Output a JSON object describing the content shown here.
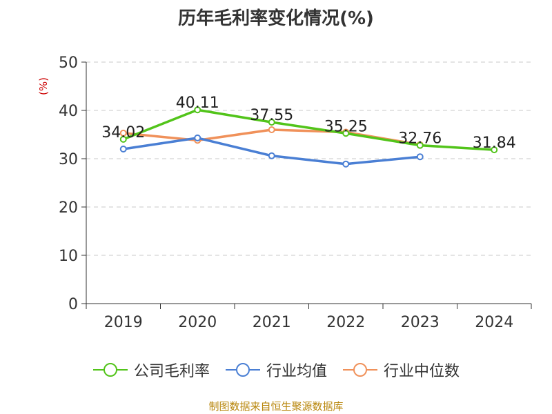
{
  "chart_data": {
    "type": "line",
    "title": "历年毛利率变化情况(%)",
    "ylabel": "(%)",
    "xlabel": "",
    "categories": [
      "2019",
      "2020",
      "2021",
      "2022",
      "2023",
      "2024"
    ],
    "ylim": [
      0,
      50
    ],
    "yticks": [
      0,
      10,
      20,
      30,
      40,
      50
    ],
    "grid": true,
    "legend_position": "bottom",
    "series": [
      {
        "name": "公司毛利率",
        "color": "#52c41a",
        "values": [
          34.02,
          40.11,
          37.55,
          35.25,
          32.76,
          31.84
        ],
        "labels": [
          "34.02",
          "40.11",
          "37.55",
          "35.25",
          "32.76",
          "31.84"
        ]
      },
      {
        "name": "行业均值",
        "color": "#4a7fd4",
        "values": [
          32.0,
          34.3,
          30.6,
          28.9,
          30.4,
          null
        ]
      },
      {
        "name": "行业中位数",
        "color": "#f0915a",
        "values": [
          35.3,
          33.8,
          36.0,
          35.5,
          32.9,
          null
        ]
      }
    ]
  },
  "footer": {
    "source": "制图数据来自恒生聚源数据库"
  }
}
